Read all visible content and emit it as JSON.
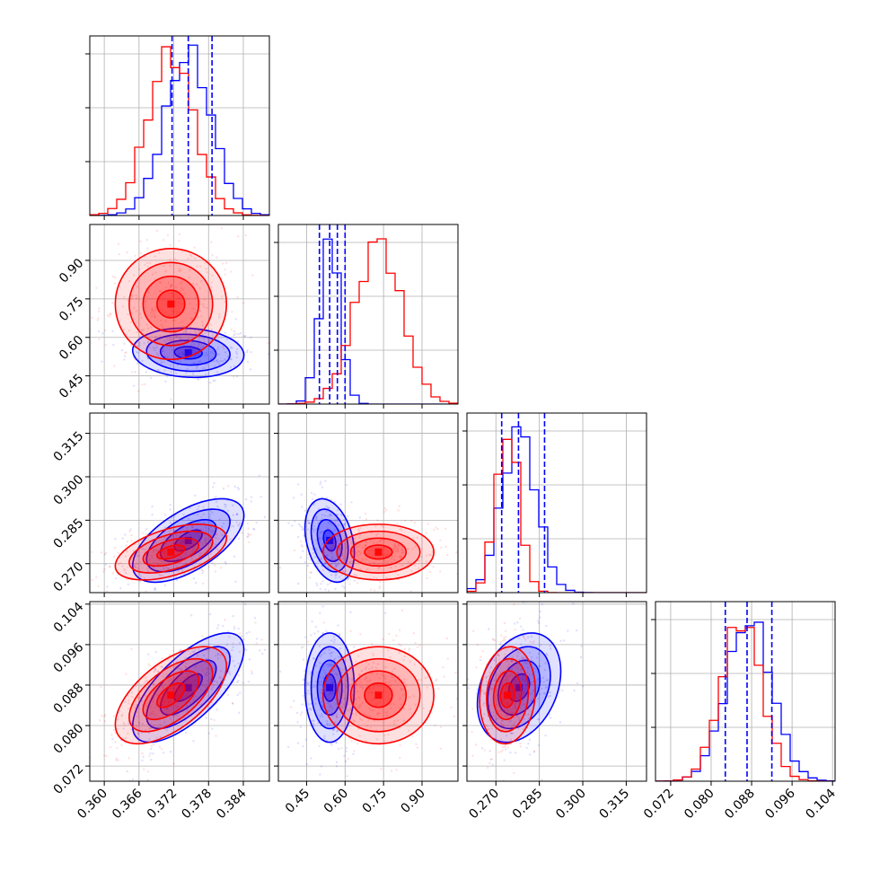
{
  "chart_data": {
    "type": "corner",
    "title": "",
    "parameters": [
      "",
      "",
      "",
      ""
    ],
    "colors": {
      "blue": "#0000ff",
      "red": "#ff0000"
    },
    "grid": true,
    "series": [
      {
        "color": "#0000ff",
        "means": [
          0.3745,
          0.54,
          0.278,
          0.0875
        ],
        "sds": [
          0.004,
          0.04,
          0.006,
          0.0045
        ],
        "corr": [
          [
            1.0,
            -0.1,
            0.6,
            0.7
          ],
          [
            -0.1,
            1.0,
            -0.3,
            0.0
          ],
          [
            0.6,
            -0.3,
            1.0,
            0.3
          ],
          [
            0.7,
            0.0,
            0.3,
            1.0
          ]
        ]
      },
      {
        "color": "#ff0000",
        "means": [
          0.3715,
          0.73,
          0.274,
          0.086
        ],
        "sds": [
          0.004,
          0.09,
          0.004,
          0.004
        ],
        "corr": [
          [
            1.0,
            0.0,
            0.5,
            0.6
          ],
          [
            0.0,
            1.0,
            0.0,
            0.0
          ],
          [
            0.5,
            0.0,
            1.0,
            0.1
          ],
          [
            0.6,
            0.0,
            0.1,
            1.0
          ]
        ]
      }
    ],
    "quantiles": {
      "0": [
        0.3717,
        0.3745,
        0.3786
      ],
      "1": [
        0.5,
        0.54,
        0.57,
        0.6
      ],
      "2": [
        0.272,
        0.2778,
        0.2868
      ],
      "3": [
        0.0828,
        0.0871,
        0.092
      ]
    },
    "axis_ranges": [
      [
        0.3575,
        0.3885
      ],
      [
        0.34,
        1.04
      ],
      [
        0.26,
        0.322
      ],
      [
        0.069,
        0.1045
      ]
    ],
    "ticks": [
      {
        "values": [
          0.36,
          0.366,
          0.372,
          0.378,
          0.384
        ],
        "labels": [
          "0.360",
          "0.366",
          "0.372",
          "0.378",
          "0.384"
        ]
      },
      {
        "values": [
          0.45,
          0.6,
          0.75,
          0.9
        ],
        "labels": [
          "0.45",
          "0.60",
          "0.75",
          "0.90"
        ]
      },
      {
        "values": [
          0.27,
          0.285,
          0.3,
          0.315
        ],
        "labels": [
          "0.270",
          "0.285",
          "0.300",
          "0.315"
        ]
      },
      {
        "values": [
          0.072,
          0.08,
          0.088,
          0.096,
          0.104
        ],
        "labels": [
          "0.072",
          "0.080",
          "0.088",
          "0.096",
          "0.104"
        ]
      }
    ]
  }
}
